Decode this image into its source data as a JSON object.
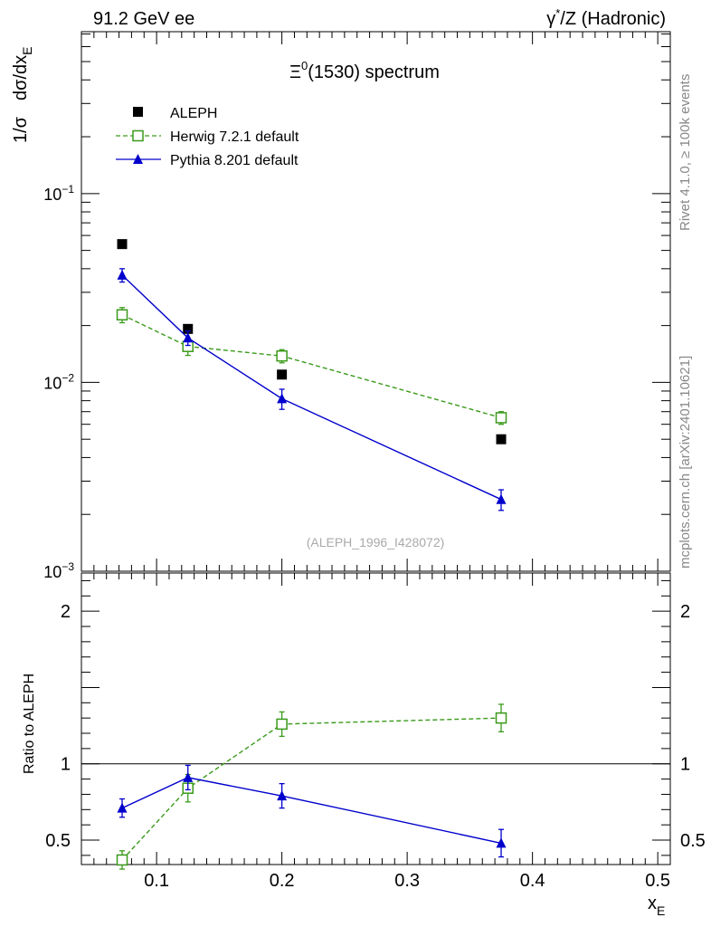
{
  "header": {
    "left": "91.2 GeV ee",
    "right_prefix": "γ",
    "right_sup": "*",
    "right_rest": "/Z (Hadronic)"
  },
  "side_labels": {
    "rivet": "Rivet 4.1.0, ≥ 100k events",
    "mcplots": "mcplots.cern.ch [arXiv:2401.10621]"
  },
  "colors": {
    "aleph": "#000000",
    "herwig": "#3a9a1a",
    "pythia": "#0000cc"
  },
  "chart_data": [
    {
      "type": "scatter",
      "title_base": "Ξ",
      "title_sup": "0",
      "title_rest": "(1530) spectrum",
      "ylabel_parts": [
        "1/σ",
        "dσ/dx",
        "E"
      ],
      "yscale": "log",
      "ylim": [
        0.001,
        0.72
      ],
      "xlim": [
        0.04,
        0.51
      ],
      "y_ticks": [
        {
          "value": 0.1,
          "base": "10",
          "exp": "−1"
        },
        {
          "value": 0.01,
          "base": "10",
          "exp": "−2"
        },
        {
          "value": 0.001,
          "base": "10",
          "exp": "−3"
        }
      ],
      "watermark": "(ALEPH_1996_I428072)",
      "legend_position": "top-left",
      "series": [
        {
          "key": "aleph",
          "name": "ALEPH",
          "marker": "square-filled",
          "line": "none",
          "x": [
            0.0725,
            0.125,
            0.2,
            0.375
          ],
          "y": [
            0.054,
            0.0192,
            0.011,
            0.005
          ],
          "err": [
            0,
            0,
            0,
            0
          ]
        },
        {
          "key": "herwig",
          "name": "Herwig 7.2.1 default",
          "marker": "square-open",
          "line": "dashed",
          "x": [
            0.0725,
            0.125,
            0.2,
            0.375
          ],
          "y": [
            0.0228,
            0.0155,
            0.0138,
            0.0065
          ],
          "err": [
            0.0021,
            0.0016,
            0.0011,
            0.0005
          ]
        },
        {
          "key": "pythia",
          "name": "Pythia 8.201 default",
          "marker": "triangle-filled",
          "line": "solid",
          "x": [
            0.0725,
            0.125,
            0.2,
            0.375
          ],
          "y": [
            0.037,
            0.0172,
            0.0082,
            0.0024
          ],
          "err": [
            0.003,
            0.0015,
            0.001,
            0.0003
          ]
        }
      ]
    },
    {
      "type": "scatter",
      "ylabel": "Ratio to ALEPH",
      "xlabel_base": "x",
      "xlabel_sub": "E",
      "yscale": "linear",
      "ylim": [
        0.34,
        2.25
      ],
      "xlim": [
        0.04,
        0.51
      ],
      "reference_line": 1,
      "y_tick_labels": [
        {
          "value": 0.5,
          "label": "0.5"
        },
        {
          "value": 1,
          "label": "1"
        },
        {
          "value": 2,
          "label": "2"
        }
      ],
      "x_tick_labels": [
        {
          "value": 0.1,
          "label": "0.1"
        },
        {
          "value": 0.2,
          "label": "0.2"
        },
        {
          "value": 0.3,
          "label": "0.3"
        },
        {
          "value": 0.4,
          "label": "0.4"
        },
        {
          "value": 0.5,
          "label": "0.5"
        }
      ],
      "series": [
        {
          "key": "herwig",
          "name": "Herwig 7.2.1 default",
          "marker": "square-open",
          "line": "dashed",
          "x": [
            0.0725,
            0.125,
            0.2,
            0.375
          ],
          "y": [
            0.37,
            0.84,
            1.26,
            1.3
          ],
          "err": [
            0.06,
            0.09,
            0.08,
            0.09
          ]
        },
        {
          "key": "pythia",
          "name": "Pythia 8.201 default",
          "marker": "triangle-filled",
          "line": "solid",
          "x": [
            0.0725,
            0.125,
            0.2,
            0.375
          ],
          "y": [
            0.71,
            0.91,
            0.79,
            0.48
          ],
          "err": [
            0.06,
            0.08,
            0.08,
            0.09
          ]
        }
      ]
    }
  ]
}
